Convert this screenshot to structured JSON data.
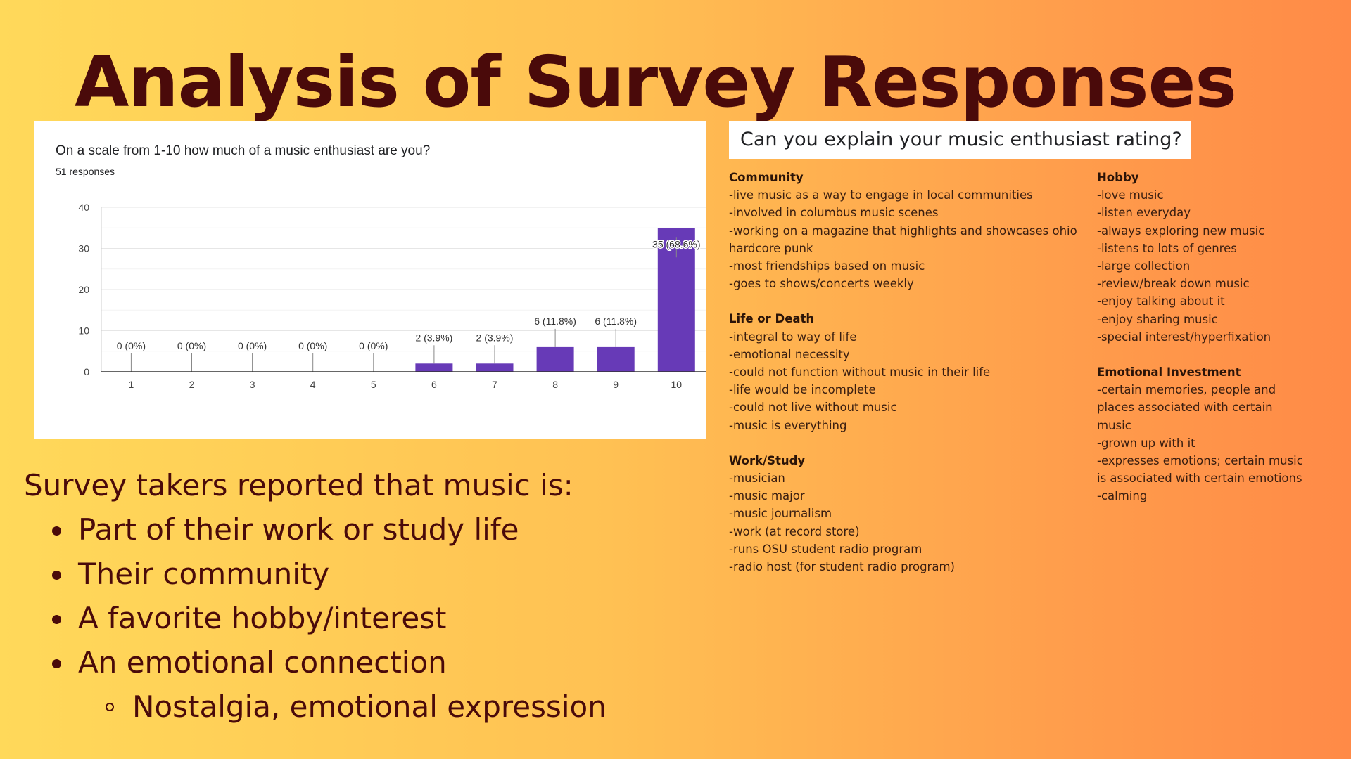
{
  "title": "Analysis of Survey Responses",
  "chart": {
    "question": "On a scale from 1-10 how much of a music enthusiast are you?",
    "responses": "51 responses"
  },
  "chart_data": {
    "type": "bar",
    "categories": [
      "1",
      "2",
      "3",
      "4",
      "5",
      "6",
      "7",
      "8",
      "9",
      "10"
    ],
    "values": [
      0,
      0,
      0,
      0,
      0,
      2,
      2,
      6,
      6,
      35
    ],
    "data_labels": [
      "0 (0%)",
      "0 (0%)",
      "0 (0%)",
      "0 (0%)",
      "0 (0%)",
      "2 (3.9%)",
      "2 (3.9%)",
      "6 (11.8%)",
      "6 (11.8%)",
      "35 (68.6%)"
    ],
    "yticks": [
      "0",
      "10",
      "20",
      "30",
      "40"
    ],
    "ylim": [
      0,
      40
    ],
    "grid": true,
    "bar_color": "#673ab7"
  },
  "explain": {
    "heading": "Can you explain your music enthusiast rating?",
    "left": [
      {
        "title": "Community",
        "items": [
          "-live music as a way to engage in local communities",
          "-involved in columbus music scenes",
          "-working on a magazine that highlights and showcases ohio hardcore punk",
          "-most friendships based on music",
          "-goes to shows/concerts weekly"
        ]
      },
      {
        "title": "Life or Death",
        "items": [
          "-integral to way of life",
          "-emotional necessity",
          "-could not function without music in their life",
          "-life would be incomplete",
          "-could not live without music",
          "-music is everything"
        ]
      },
      {
        "title": "Work/Study",
        "items": [
          "-musician",
          "-music major",
          "-music journalism",
          "-work (at record store)",
          "-runs OSU student radio program",
          "-radio host  (for student radio program)"
        ]
      }
    ],
    "right": [
      {
        "title": "Hobby",
        "items": [
          "-love music",
          "-listen everyday",
          "-always exploring new music",
          "-listens to lots of genres",
          "-large collection",
          "-review/break down music",
          "-enjoy talking about it",
          "-enjoy sharing music",
          "-special interest/hyperfixation"
        ]
      },
      {
        "title": "Emotional Investment",
        "items": [
          "-certain memories, people and places associated with certain music",
          "-grown up with it",
          "-expresses emotions; certain music is associated with certain emotions",
          "-calming"
        ]
      }
    ]
  },
  "summary": {
    "lead": "Survey takers reported that music is:",
    "bullets": [
      "Part  of their work or study life",
      "Their community",
      "A favorite hobby/interest",
      "An emotional connection"
    ],
    "sub_bullet": "Nostalgia, emotional expression"
  },
  "colors": {
    "title": "#4a0a0a",
    "bar": "#673ab7",
    "gradient_start": "#ffd95a",
    "gradient_end": "#ff8a47"
  }
}
